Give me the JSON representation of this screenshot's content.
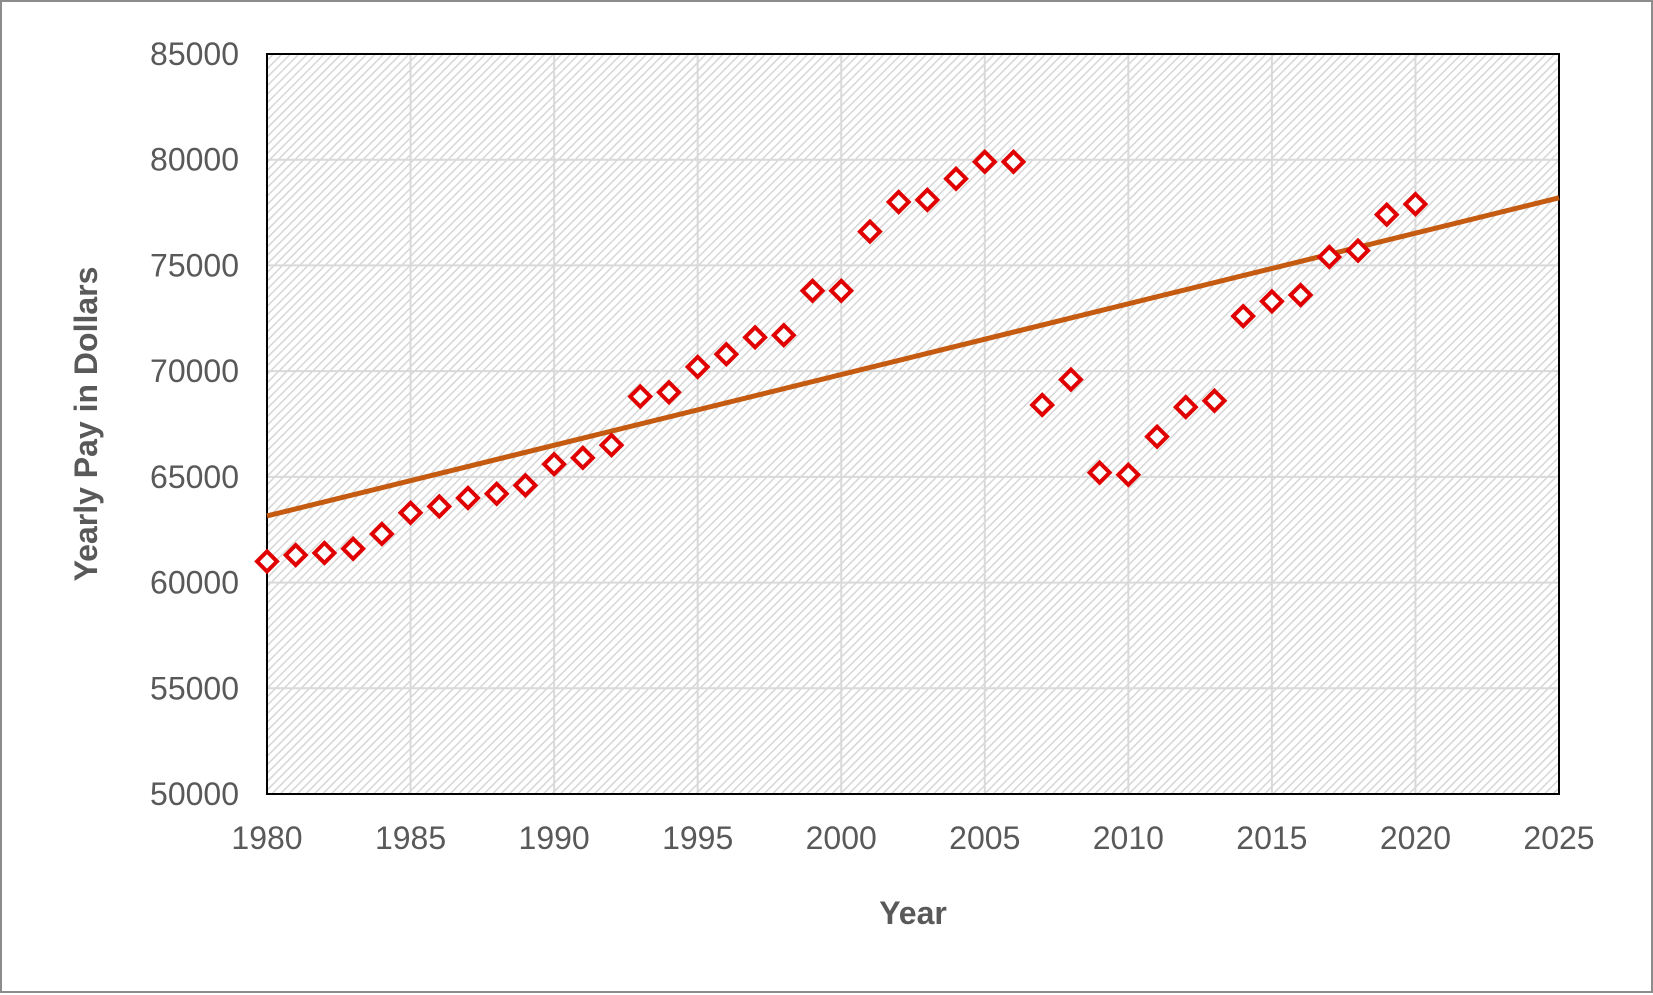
{
  "chart_data": {
    "type": "scatter",
    "title": "",
    "xlabel": "Year",
    "ylabel": "Yearly Pay in Dollars",
    "xlim": [
      1980,
      2025
    ],
    "ylim": [
      50000,
      85000
    ],
    "x_ticks": [
      1980,
      1985,
      1990,
      1995,
      2000,
      2005,
      2010,
      2015,
      2020,
      2025
    ],
    "y_ticks": [
      50000,
      55000,
      60000,
      65000,
      70000,
      75000,
      80000,
      85000
    ],
    "grid": true,
    "legend": "none",
    "series": [
      {
        "marker": "diamond-open",
        "color": "#e00000",
        "x": [
          1980,
          1981,
          1982,
          1983,
          1984,
          1985,
          1986,
          1987,
          1988,
          1989,
          1990,
          1991,
          1992,
          1993,
          1994,
          1995,
          1996,
          1997,
          1998,
          1999,
          2000,
          2001,
          2002,
          2003,
          2004,
          2005,
          2006,
          2007,
          2008,
          2009,
          2010,
          2011,
          2012,
          2013,
          2014,
          2015,
          2016,
          2017,
          2018,
          2019,
          2020
        ],
        "y": [
          61000,
          61300,
          61400,
          61600,
          62300,
          63300,
          63600,
          64000,
          64200,
          64600,
          65600,
          65900,
          66500,
          68800,
          69000,
          70200,
          70800,
          71600,
          71700,
          73800,
          73800,
          76600,
          78000,
          78100,
          79100,
          79900,
          79900,
          68400,
          69600,
          65200,
          65100,
          66900,
          68300,
          68600,
          72600,
          73300,
          73600,
          75400,
          75700,
          77400,
          77900
        ]
      }
    ],
    "trendline": {
      "type": "linear",
      "color": "#c55a11",
      "x": [
        1980,
        2025
      ],
      "y": [
        63150,
        78200
      ]
    }
  }
}
